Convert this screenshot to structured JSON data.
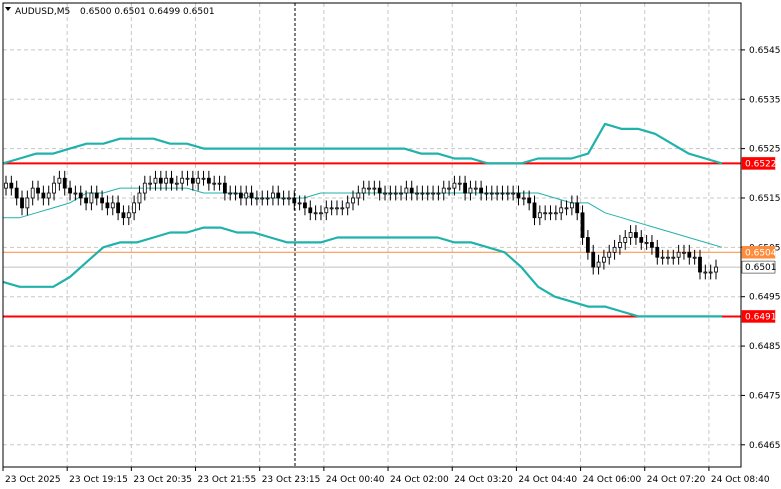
{
  "header": {
    "symbol": "AUDUSD,M5",
    "ohlc": "0.6500 0.6501 0.6499 0.6501"
  },
  "colors": {
    "background": "#ffffff",
    "grid": "#c8c8c8",
    "candle": "#000000",
    "band": "#20b2aa",
    "support_resistance": "#ff0000",
    "mid_level": "#ff8c3c",
    "current_price": "#c0c0c0"
  },
  "chart_data": {
    "type": "candlestick",
    "symbol": "AUDUSD",
    "timeframe": "M5",
    "ylim": [
      0.64605,
      0.65545
    ],
    "y_ticks": [
      0.6545,
      0.6535,
      0.6525,
      0.6515,
      0.6505,
      0.6495,
      0.6485,
      0.6475,
      0.6465
    ],
    "x_tick_labels": [
      "23 Oct 2025",
      "23 Oct 19:15",
      "23 Oct 20:35",
      "23 Oct 21:55",
      "23 Oct 23:15",
      "24 Oct 00:40",
      "24 Oct 02:00",
      "24 Oct 03:20",
      "24 Oct 04:40",
      "24 Oct 06:00",
      "24 Oct 07:20",
      "24 Oct 08:40"
    ],
    "grid": true,
    "horizontal_levels": [
      {
        "label": "0.6522",
        "value": 0.6522,
        "style": "resistance"
      },
      {
        "label": "0.6504",
        "value": 0.6504,
        "style": "mid"
      },
      {
        "label": "0.6501",
        "value": 0.6501,
        "style": "current"
      },
      {
        "label": "0.6491",
        "value": 0.6491,
        "style": "support"
      }
    ],
    "close": [
      0.6518,
      0.6517,
      0.6515,
      0.6513,
      0.6515,
      0.6517,
      0.6516,
      0.6515,
      0.6516,
      0.6518,
      0.6519,
      0.6517,
      0.6516,
      0.6516,
      0.6515,
      0.6514,
      0.6516,
      0.6515,
      0.6514,
      0.6513,
      0.6514,
      0.6512,
      0.6511,
      0.6512,
      0.6514,
      0.6516,
      0.6518,
      0.6518,
      0.6519,
      0.6518,
      0.6519,
      0.6518,
      0.6518,
      0.6519,
      0.6519,
      0.6518,
      0.6519,
      0.6519,
      0.6518,
      0.6518,
      0.6518,
      0.6516,
      0.6516,
      0.6516,
      0.6515,
      0.6516,
      0.6515,
      0.6515,
      0.6515,
      0.6515,
      0.6516,
      0.6515,
      0.6515,
      0.6515,
      0.6514,
      0.6514,
      0.6513,
      0.6512,
      0.6512,
      0.6512,
      0.6513,
      0.6513,
      0.6513,
      0.6513,
      0.6514,
      0.6515,
      0.6516,
      0.6517,
      0.6517,
      0.6517,
      0.6516,
      0.6516,
      0.6516,
      0.6516,
      0.6516,
      0.6517,
      0.6516,
      0.6516,
      0.6516,
      0.6516,
      0.6516,
      0.6516,
      0.6517,
      0.6517,
      0.6518,
      0.6518,
      0.6516,
      0.6517,
      0.6517,
      0.6516,
      0.6516,
      0.6516,
      0.6516,
      0.6516,
      0.6516,
      0.6516,
      0.6515,
      0.6515,
      0.6514,
      0.6511,
      0.6512,
      0.6512,
      0.6512,
      0.6512,
      0.6513,
      0.6513,
      0.6514,
      0.6512,
      0.6507,
      0.6504,
      0.6501,
      0.6502,
      0.6503,
      0.6504,
      0.6505,
      0.6506,
      0.6507,
      0.6508,
      0.6507,
      0.6506,
      0.6506,
      0.6505,
      0.6503,
      0.6503,
      0.6503,
      0.6503,
      0.6504,
      0.6504,
      0.6503,
      0.6503,
      0.65,
      0.65,
      0.65,
      0.6501
    ],
    "bollinger_upper": [
      0.6522,
      0.6523,
      0.6524,
      0.6524,
      0.6525,
      0.6526,
      0.6526,
      0.6527,
      0.6527,
      0.6527,
      0.6526,
      0.6526,
      0.6525,
      0.6525,
      0.6525,
      0.6525,
      0.6525,
      0.6525,
      0.6525,
      0.6525,
      0.6525,
      0.6525,
      0.6525,
      0.6525,
      0.6525,
      0.6524,
      0.6524,
      0.6523,
      0.6523,
      0.6522,
      0.6522,
      0.6522,
      0.6523,
      0.6523,
      0.6523,
      0.6524,
      0.653,
      0.6529,
      0.6529,
      0.6528,
      0.6526,
      0.6524,
      0.6523,
      0.6522
    ],
    "bollinger_mid": [
      0.6511,
      0.6511,
      0.6512,
      0.6513,
      0.6514,
      0.6516,
      0.6516,
      0.6517,
      0.6517,
      0.6517,
      0.6517,
      0.6517,
      0.6516,
      0.6516,
      0.6516,
      0.6515,
      0.6515,
      0.6515,
      0.6515,
      0.6516,
      0.6516,
      0.6516,
      0.6516,
      0.6516,
      0.6516,
      0.6516,
      0.6516,
      0.6516,
      0.6516,
      0.6516,
      0.6516,
      0.6516,
      0.6516,
      0.6515,
      0.6514,
      0.6514,
      0.6512,
      0.6511,
      0.651,
      0.6509,
      0.6508,
      0.6507,
      0.6506,
      0.6505
    ],
    "bollinger_lower": [
      0.6498,
      0.6497,
      0.6497,
      0.6497,
      0.6499,
      0.6502,
      0.6505,
      0.6506,
      0.6506,
      0.6507,
      0.6508,
      0.6508,
      0.6509,
      0.6509,
      0.6508,
      0.6508,
      0.6507,
      0.6506,
      0.6506,
      0.6506,
      0.6507,
      0.6507,
      0.6507,
      0.6507,
      0.6507,
      0.6507,
      0.6507,
      0.6506,
      0.6506,
      0.6505,
      0.6504,
      0.6501,
      0.6497,
      0.6495,
      0.6494,
      0.6493,
      0.6493,
      0.6492,
      0.6491,
      0.6491,
      0.6491,
      0.6491,
      0.6491,
      0.6491
    ]
  }
}
